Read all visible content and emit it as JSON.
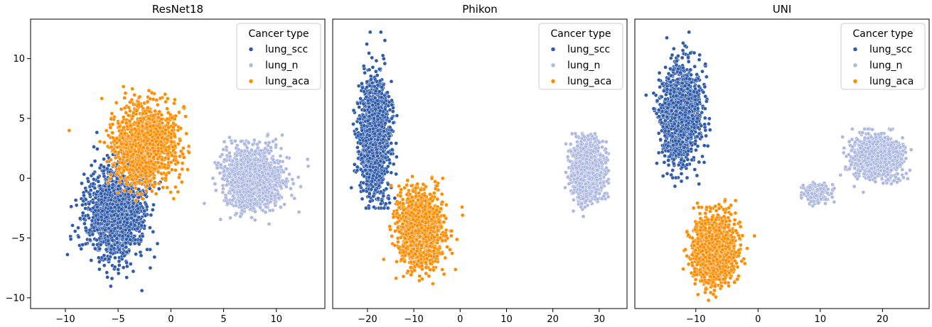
{
  "colors": {
    "lung_scc": "#2f5bab",
    "lung_n": "#aeb9e2",
    "lung_aca": "#ff8c00"
  },
  "chart_data": [
    {
      "type": "scatter",
      "title": "ResNet18",
      "xlim": [
        -13.3,
        14.6
      ],
      "ylim": [
        -10.9,
        13.3
      ],
      "xticks": [
        -10,
        -5,
        0,
        5,
        10
      ],
      "xtick_labels": [
        "−10",
        "−5",
        "0",
        "5",
        "10"
      ],
      "yticks": [
        -10,
        -5,
        0,
        5,
        10
      ],
      "ytick_labels": [
        "−10",
        "−5",
        "0",
        "5",
        "10"
      ],
      "legend": {
        "title": "Cancer type",
        "position": "top-right",
        "entries": [
          "lung_scc",
          "lung_n",
          "lung_aca"
        ]
      },
      "series": [
        {
          "name": "lung_scc",
          "clusters": [
            {
              "center": [
                -5.2,
                -2.8
              ],
              "spread": [
                2.3,
                3.2
              ],
              "range_x": [
                -12,
                -1
              ],
              "range_y": [
                -10.5,
                12.4
              ]
            }
          ]
        },
        {
          "name": "lung_n",
          "clusters": [
            {
              "center": [
                7.8,
                0.0
              ],
              "spread": [
                2.2,
                2.0
              ],
              "range_x": [
                2.8,
                13.4
              ],
              "range_y": [
                -5.8,
                8.6
              ]
            }
          ]
        },
        {
          "name": "lung_aca",
          "clusters": [
            {
              "center": [
                -2.5,
                2.8
              ],
              "spread": [
                2.4,
                2.5
              ],
              "range_x": [
                -10,
                4
              ],
              "range_y": [
                -7,
                11.8
              ]
            }
          ]
        }
      ]
    },
    {
      "type": "scatter",
      "title": "Phikon",
      "xlim": [
        -27.5,
        36.0
      ],
      "ylim": [
        -11.0,
        13.5
      ],
      "xticks": [
        -20,
        -10,
        0,
        10,
        20,
        30
      ],
      "xtick_labels": [
        "−20",
        "−10",
        "0",
        "10",
        "20",
        "30"
      ],
      "yticks": [],
      "ytick_labels": [],
      "legend": {
        "title": "Cancer type",
        "position": "top-right",
        "entries": [
          "lung_scc",
          "lung_n",
          "lung_aca"
        ]
      },
      "series": [
        {
          "name": "lung_scc",
          "clusters": [
            {
              "center": [
                -18.5,
                3.5
              ],
              "spread": [
                2.6,
                4.0
              ],
              "range_x": [
                -24,
                -7
              ],
              "range_y": [
                -2.5,
                12.4
              ]
            }
          ]
        },
        {
          "name": "lung_n",
          "clusters": [
            {
              "center": [
                27.5,
                0.6
              ],
              "spread": [
                2.6,
                1.9
              ],
              "range_x": [
                12,
                32
              ],
              "range_y": [
                -3.2,
                3.8
              ]
            }
          ]
        },
        {
          "name": "lung_aca",
          "clusters": [
            {
              "center": [
                -8.5,
                -4.3
              ],
              "spread": [
                3.8,
                2.4
              ],
              "range_x": [
                -20,
                12
              ],
              "range_y": [
                -10.3,
                1
              ]
            }
          ]
        }
      ]
    },
    {
      "type": "scatter",
      "title": "UNI",
      "xlim": [
        -19.8,
        27.5
      ],
      "ylim": [
        -11.0,
        13.5
      ],
      "xticks": [
        -10,
        0,
        10,
        20
      ],
      "xtick_labels": [
        "−10",
        "0",
        "10",
        "20"
      ],
      "yticks": [],
      "ytick_labels": [],
      "legend": {
        "title": "Cancer type",
        "position": "top-right",
        "entries": [
          "lung_scc",
          "lung_n",
          "lung_aca"
        ]
      },
      "series": [
        {
          "name": "lung_scc",
          "clusters": [
            {
              "center": [
                -12.5,
                5.5
              ],
              "spread": [
                2.6,
                3.3
              ],
              "range_x": [
                -18,
                -4
              ],
              "range_y": [
                -1.5,
                12.4
              ]
            }
          ]
        },
        {
          "name": "lung_n",
          "clusters": [
            {
              "center": [
                19.0,
                1.8
              ],
              "spread": [
                3.0,
                1.4
              ],
              "range_x": [
                13,
                26
              ],
              "range_y": [
                -2,
                4.2
              ]
            },
            {
              "center": [
                9.5,
                -1.3
              ],
              "spread": [
                1.6,
                0.6
              ],
              "range_x": [
                6,
                12.5
              ],
              "range_y": [
                -3,
                0.2
              ]
            }
          ]
        },
        {
          "name": "lung_aca",
          "clusters": [
            {
              "center": [
                -7.0,
                -6.0
              ],
              "spread": [
                2.7,
                2.3
              ],
              "range_x": [
                -15,
                3
              ],
              "range_y": [
                -10.3,
                1.5
              ]
            }
          ]
        }
      ]
    }
  ]
}
